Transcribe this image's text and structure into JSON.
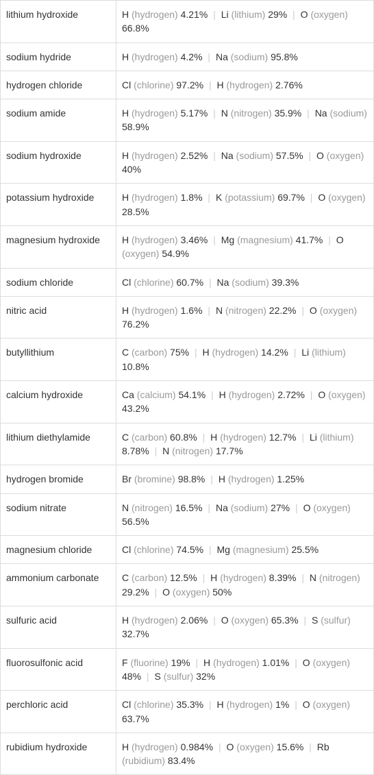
{
  "table": {
    "label_col_width": 169,
    "border_color": "#dddddd",
    "text_color": "#333333",
    "muted_color": "#999999",
    "separator_color": "#cccccc",
    "font_size": 14,
    "rows": [
      {
        "name": "lithium hydroxide",
        "elements": [
          {
            "symbol": "H",
            "name": "(hydrogen)",
            "pct": "4.21%"
          },
          {
            "symbol": "Li",
            "name": "(lithium)",
            "pct": "29%"
          },
          {
            "symbol": "O",
            "name": "(oxygen)",
            "pct": "66.8%"
          }
        ]
      },
      {
        "name": "sodium hydride",
        "elements": [
          {
            "symbol": "H",
            "name": "(hydrogen)",
            "pct": "4.2%"
          },
          {
            "symbol": "Na",
            "name": "(sodium)",
            "pct": "95.8%"
          }
        ]
      },
      {
        "name": "hydrogen chloride",
        "elements": [
          {
            "symbol": "Cl",
            "name": "(chlorine)",
            "pct": "97.2%"
          },
          {
            "symbol": "H",
            "name": "(hydrogen)",
            "pct": "2.76%"
          }
        ]
      },
      {
        "name": "sodium amide",
        "elements": [
          {
            "symbol": "H",
            "name": "(hydrogen)",
            "pct": "5.17%"
          },
          {
            "symbol": "N",
            "name": "(nitrogen)",
            "pct": "35.9%"
          },
          {
            "symbol": "Na",
            "name": "(sodium)",
            "pct": "58.9%"
          }
        ]
      },
      {
        "name": "sodium hydroxide",
        "elements": [
          {
            "symbol": "H",
            "name": "(hydrogen)",
            "pct": "2.52%"
          },
          {
            "symbol": "Na",
            "name": "(sodium)",
            "pct": "57.5%"
          },
          {
            "symbol": "O",
            "name": "(oxygen)",
            "pct": "40%"
          }
        ]
      },
      {
        "name": "potassium hydroxide",
        "elements": [
          {
            "symbol": "H",
            "name": "(hydrogen)",
            "pct": "1.8%"
          },
          {
            "symbol": "K",
            "name": "(potassium)",
            "pct": "69.7%"
          },
          {
            "symbol": "O",
            "name": "(oxygen)",
            "pct": "28.5%"
          }
        ]
      },
      {
        "name": "magnesium hydroxide",
        "elements": [
          {
            "symbol": "H",
            "name": "(hydrogen)",
            "pct": "3.46%"
          },
          {
            "symbol": "Mg",
            "name": "(magnesium)",
            "pct": "41.7%"
          },
          {
            "symbol": "O",
            "name": "(oxygen)",
            "pct": "54.9%"
          }
        ]
      },
      {
        "name": "sodium chloride",
        "elements": [
          {
            "symbol": "Cl",
            "name": "(chlorine)",
            "pct": "60.7%"
          },
          {
            "symbol": "Na",
            "name": "(sodium)",
            "pct": "39.3%"
          }
        ]
      },
      {
        "name": "nitric acid",
        "elements": [
          {
            "symbol": "H",
            "name": "(hydrogen)",
            "pct": "1.6%"
          },
          {
            "symbol": "N",
            "name": "(nitrogen)",
            "pct": "22.2%"
          },
          {
            "symbol": "O",
            "name": "(oxygen)",
            "pct": "76.2%"
          }
        ]
      },
      {
        "name": "butyllithium",
        "elements": [
          {
            "symbol": "C",
            "name": "(carbon)",
            "pct": "75%"
          },
          {
            "symbol": "H",
            "name": "(hydrogen)",
            "pct": "14.2%"
          },
          {
            "symbol": "Li",
            "name": "(lithium)",
            "pct": "10.8%"
          }
        ]
      },
      {
        "name": "calcium hydroxide",
        "elements": [
          {
            "symbol": "Ca",
            "name": "(calcium)",
            "pct": "54.1%"
          },
          {
            "symbol": "H",
            "name": "(hydrogen)",
            "pct": "2.72%"
          },
          {
            "symbol": "O",
            "name": "(oxygen)",
            "pct": "43.2%"
          }
        ]
      },
      {
        "name": "lithium diethylamide",
        "elements": [
          {
            "symbol": "C",
            "name": "(carbon)",
            "pct": "60.8%"
          },
          {
            "symbol": "H",
            "name": "(hydrogen)",
            "pct": "12.7%"
          },
          {
            "symbol": "Li",
            "name": "(lithium)",
            "pct": "8.78%"
          },
          {
            "symbol": "N",
            "name": "(nitrogen)",
            "pct": "17.7%"
          }
        ]
      },
      {
        "name": "hydrogen bromide",
        "elements": [
          {
            "symbol": "Br",
            "name": "(bromine)",
            "pct": "98.8%"
          },
          {
            "symbol": "H",
            "name": "(hydrogen)",
            "pct": "1.25%"
          }
        ]
      },
      {
        "name": "sodium nitrate",
        "elements": [
          {
            "symbol": "N",
            "name": "(nitrogen)",
            "pct": "16.5%"
          },
          {
            "symbol": "Na",
            "name": "(sodium)",
            "pct": "27%"
          },
          {
            "symbol": "O",
            "name": "(oxygen)",
            "pct": "56.5%"
          }
        ]
      },
      {
        "name": "magnesium chloride",
        "elements": [
          {
            "symbol": "Cl",
            "name": "(chlorine)",
            "pct": "74.5%"
          },
          {
            "symbol": "Mg",
            "name": "(magnesium)",
            "pct": "25.5%"
          }
        ]
      },
      {
        "name": "ammonium carbonate",
        "elements": [
          {
            "symbol": "C",
            "name": "(carbon)",
            "pct": "12.5%"
          },
          {
            "symbol": "H",
            "name": "(hydrogen)",
            "pct": "8.39%"
          },
          {
            "symbol": "N",
            "name": "(nitrogen)",
            "pct": "29.2%"
          },
          {
            "symbol": "O",
            "name": "(oxygen)",
            "pct": "50%"
          }
        ]
      },
      {
        "name": "sulfuric acid",
        "elements": [
          {
            "symbol": "H",
            "name": "(hydrogen)",
            "pct": "2.06%"
          },
          {
            "symbol": "O",
            "name": "(oxygen)",
            "pct": "65.3%"
          },
          {
            "symbol": "S",
            "name": "(sulfur)",
            "pct": "32.7%"
          }
        ]
      },
      {
        "name": "fluorosulfonic acid",
        "elements": [
          {
            "symbol": "F",
            "name": "(fluorine)",
            "pct": "19%"
          },
          {
            "symbol": "H",
            "name": "(hydrogen)",
            "pct": "1.01%"
          },
          {
            "symbol": "O",
            "name": "(oxygen)",
            "pct": "48%"
          },
          {
            "symbol": "S",
            "name": "(sulfur)",
            "pct": "32%"
          }
        ]
      },
      {
        "name": "perchloric acid",
        "elements": [
          {
            "symbol": "Cl",
            "name": "(chlorine)",
            "pct": "35.3%"
          },
          {
            "symbol": "H",
            "name": "(hydrogen)",
            "pct": "1%"
          },
          {
            "symbol": "O",
            "name": "(oxygen)",
            "pct": "63.7%"
          }
        ]
      },
      {
        "name": "rubidium hydroxide",
        "elements": [
          {
            "symbol": "H",
            "name": "(hydrogen)",
            "pct": "0.984%"
          },
          {
            "symbol": "O",
            "name": "(oxygen)",
            "pct": "15.6%"
          },
          {
            "symbol": "Rb",
            "name": "(rubidium)",
            "pct": "83.4%"
          }
        ]
      }
    ]
  }
}
